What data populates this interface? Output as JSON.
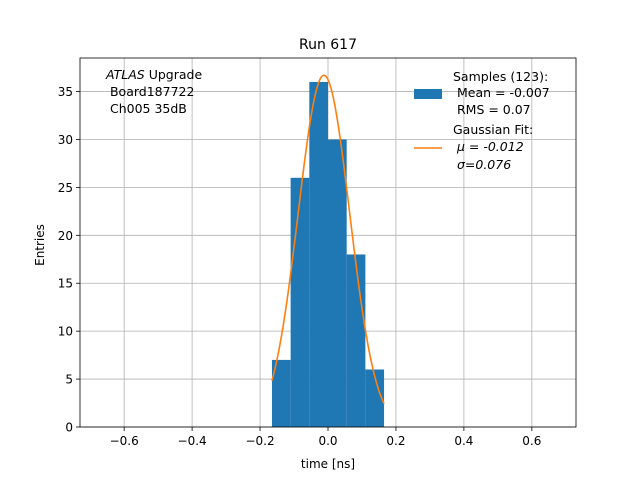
{
  "chart_data": {
    "type": "bar",
    "title": "Run 617",
    "xlabel": "time [ns]",
    "ylabel": "Entries",
    "xlim": [
      -0.73,
      0.73
    ],
    "ylim": [
      0,
      38.5
    ],
    "grid": true,
    "xticks": [
      -0.6,
      -0.4,
      -0.2,
      0.0,
      0.2,
      0.4,
      0.6
    ],
    "xtick_labels": [
      "−0.6",
      "−0.4",
      "−0.2",
      "0.0",
      "0.2",
      "0.4",
      "0.6"
    ],
    "yticks": [
      0,
      5,
      10,
      15,
      20,
      25,
      30,
      35
    ],
    "ytick_labels": [
      "0",
      "5",
      "10",
      "15",
      "20",
      "25",
      "30",
      "35"
    ],
    "histogram": {
      "bin_edges": [
        -0.165,
        -0.11,
        -0.055,
        0.0,
        0.055,
        0.11,
        0.165
      ],
      "counts": [
        7,
        26,
        36,
        30,
        18,
        6
      ],
      "color": "#1f77b4"
    },
    "fit_curve": {
      "amplitude": 36.7,
      "mu": -0.012,
      "sigma": 0.076,
      "x_range": [
        -0.165,
        0.165
      ],
      "color": "#ff7f0e"
    },
    "annotation": {
      "italic": "ATLAS",
      "rest": " Upgrade",
      "line2": " Board187722",
      "line3": " Ch005 35dB"
    },
    "legend": {
      "placement": "top-right",
      "entries": [
        {
          "lines": [
            "Samples (123):",
            " Mean = -0.007",
            " RMS = 0.07"
          ]
        },
        {
          "lines": [
            "Gaussian Fit:",
            " μ = -0.012",
            " σ=0.076"
          ]
        }
      ]
    }
  }
}
